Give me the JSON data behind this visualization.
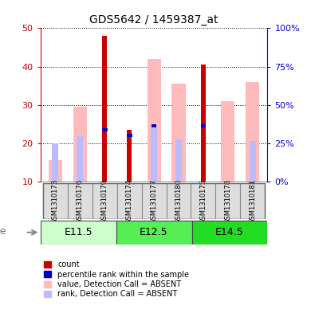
{
  "title": "GDS5642 / 1459387_at",
  "samples": [
    "GSM1310173",
    "GSM1310176",
    "GSM1310179",
    "GSM1310174",
    "GSM1310177",
    "GSM1310180",
    "GSM1310175",
    "GSM1310178",
    "GSM1310181"
  ],
  "age_groups": [
    {
      "label": "E11.5",
      "start": 0,
      "end": 3
    },
    {
      "label": "E12.5",
      "start": 3,
      "end": 6
    },
    {
      "label": "E14.5",
      "start": 6,
      "end": 9
    }
  ],
  "age_colors": [
    "#ccffcc",
    "#55ee55",
    "#22dd22"
  ],
  "red_bars": [
    0,
    0,
    48,
    23.5,
    0,
    0,
    40.5,
    0,
    0
  ],
  "blue_bars": [
    0,
    0,
    23.5,
    22,
    24.5,
    0,
    24.5,
    0,
    0
  ],
  "pink_bars": [
    15.5,
    29.5,
    0,
    0,
    42,
    35.5,
    0,
    31,
    36
  ],
  "lightblue_bars": [
    20,
    22,
    0,
    0,
    24,
    21,
    0,
    0,
    20.5
  ],
  "ymin": 10,
  "ymax": 50,
  "yticks_left": [
    10,
    20,
    30,
    40,
    50
  ],
  "yticks_right": [
    0,
    25,
    50,
    75,
    100
  ],
  "right_axis_color": "#0000dd",
  "left_axis_color": "#cc0000",
  "bar_bottom": 10
}
